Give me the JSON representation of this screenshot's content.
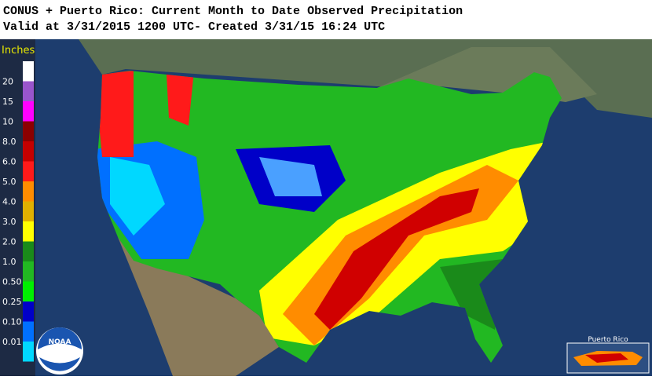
{
  "header": {
    "title": "CONUS + Puerto Rico: Current Month to Date Observed Precipitation",
    "subtitle": "Valid at 3/31/2015 1200 UTC- Created 3/31/15 16:24 UTC"
  },
  "legend": {
    "title": "Inches",
    "labels": [
      "20",
      "15",
      "10",
      "8.0",
      "6.0",
      "5.0",
      "4.0",
      "3.0",
      "2.0",
      "1.0",
      "0.50",
      "0.25",
      "0.10",
      "0.01"
    ],
    "colors": [
      "#ffffff",
      "#9955cc",
      "#ff00ff",
      "#8b0000",
      "#c40000",
      "#ff1a1a",
      "#ff8c00",
      "#e0b000",
      "#ffff00",
      "#1a8a1a",
      "#22b822",
      "#00f000",
      "#0000c8",
      "#0070ff",
      "#00d8ff"
    ]
  },
  "logo": {
    "text": "NOAA"
  },
  "inset": {
    "label": "Puerto Rico"
  }
}
